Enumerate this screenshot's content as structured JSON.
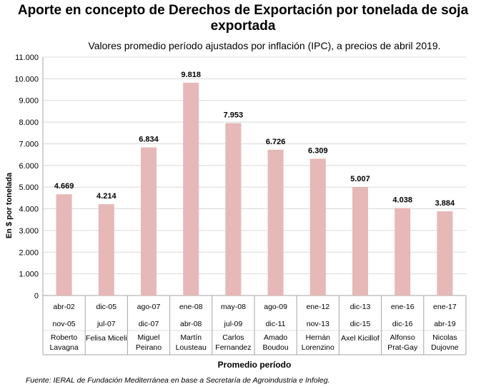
{
  "chart_data": {
    "type": "bar",
    "title": "Aporte en concepto de Derechos de Exportación por tonelada de soja exportada",
    "subtitle": "Valores promedio período ajustados por inflación (IPC), a precios de abril 2019.",
    "ylabel": "En $ por tonelada",
    "xlabel": "Promedio período",
    "source": "Fuente: IERAL de Fundación Mediterránea en base a Secretaría de Agroindustria e Infoleg.",
    "ylim": [
      0,
      11000
    ],
    "ytick_step": 1000,
    "ytick_labels": [
      "0",
      "1.000",
      "2.000",
      "3.000",
      "4.000",
      "5.000",
      "6.000",
      "7.000",
      "8.000",
      "9.000",
      "10.000",
      "11.000"
    ],
    "grid": true,
    "bar_color": "#e6b8b7",
    "categories": [
      {
        "start": "abr-02",
        "end": "nov-05",
        "name": [
          "Roberto",
          "Lavagna"
        ]
      },
      {
        "start": "dic-05",
        "end": "jul-07",
        "name": [
          "Felisa Miceli"
        ]
      },
      {
        "start": "ago-07",
        "end": "dic-07",
        "name": [
          "Miguel",
          "Peirano"
        ]
      },
      {
        "start": "ene-08",
        "end": "abr-08",
        "name": [
          "Martín",
          "Lousteau"
        ]
      },
      {
        "start": "may-08",
        "end": "jul-09",
        "name": [
          "Carlos",
          "Fernandez"
        ]
      },
      {
        "start": "ago-09",
        "end": "dic-11",
        "name": [
          "Amado",
          "Boudou"
        ]
      },
      {
        "start": "ene-12",
        "end": "nov-13",
        "name": [
          "Hernán",
          "Lorenzino"
        ]
      },
      {
        "start": "dic-13",
        "end": "dic-15",
        "name": [
          "Axel Kicillof"
        ]
      },
      {
        "start": "ene-16",
        "end": "dic-16",
        "name": [
          "Alfonso",
          "Prat-Gay"
        ]
      },
      {
        "start": "ene-17",
        "end": "abr-19",
        "name": [
          "Nicolas",
          "Dujovne"
        ]
      }
    ],
    "values": [
      4669,
      4214,
      6834,
      9818,
      7953,
      6726,
      6309,
      5007,
      4038,
      3884
    ],
    "value_labels": [
      "4.669",
      "4.214",
      "6.834",
      "9.818",
      "7.953",
      "6.726",
      "6.309",
      "5.007",
      "4.038",
      "3.884"
    ]
  }
}
